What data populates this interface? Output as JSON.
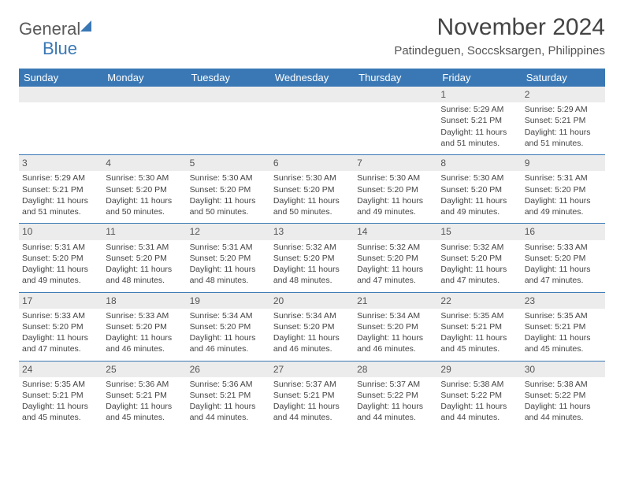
{
  "brand": {
    "part1": "General",
    "part2": "Blue"
  },
  "title": "November 2024",
  "subtitle": "Patindeguen, Soccsksargen, Philippines",
  "colors": {
    "header_bg": "#3a78b5",
    "header_text": "#ffffff",
    "daynum_bg": "#ececec",
    "row_separator": "#3a78b5",
    "body_text": "#444444",
    "logo_gray": "#5a5a5a",
    "logo_blue": "#3a78b5"
  },
  "typography": {
    "title_fontsize": 30,
    "subtitle_fontsize": 15,
    "header_fontsize": 13,
    "cell_fontsize": 10.5
  },
  "dayHeaders": [
    "Sunday",
    "Monday",
    "Tuesday",
    "Wednesday",
    "Thursday",
    "Friday",
    "Saturday"
  ],
  "weeks": [
    [
      {
        "day": "",
        "sunrise": "",
        "sunset": "",
        "daylight": ""
      },
      {
        "day": "",
        "sunrise": "",
        "sunset": "",
        "daylight": ""
      },
      {
        "day": "",
        "sunrise": "",
        "sunset": "",
        "daylight": ""
      },
      {
        "day": "",
        "sunrise": "",
        "sunset": "",
        "daylight": ""
      },
      {
        "day": "",
        "sunrise": "",
        "sunset": "",
        "daylight": ""
      },
      {
        "day": "1",
        "sunrise": "Sunrise: 5:29 AM",
        "sunset": "Sunset: 5:21 PM",
        "daylight": "Daylight: 11 hours and 51 minutes."
      },
      {
        "day": "2",
        "sunrise": "Sunrise: 5:29 AM",
        "sunset": "Sunset: 5:21 PM",
        "daylight": "Daylight: 11 hours and 51 minutes."
      }
    ],
    [
      {
        "day": "3",
        "sunrise": "Sunrise: 5:29 AM",
        "sunset": "Sunset: 5:21 PM",
        "daylight": "Daylight: 11 hours and 51 minutes."
      },
      {
        "day": "4",
        "sunrise": "Sunrise: 5:30 AM",
        "sunset": "Sunset: 5:20 PM",
        "daylight": "Daylight: 11 hours and 50 minutes."
      },
      {
        "day": "5",
        "sunrise": "Sunrise: 5:30 AM",
        "sunset": "Sunset: 5:20 PM",
        "daylight": "Daylight: 11 hours and 50 minutes."
      },
      {
        "day": "6",
        "sunrise": "Sunrise: 5:30 AM",
        "sunset": "Sunset: 5:20 PM",
        "daylight": "Daylight: 11 hours and 50 minutes."
      },
      {
        "day": "7",
        "sunrise": "Sunrise: 5:30 AM",
        "sunset": "Sunset: 5:20 PM",
        "daylight": "Daylight: 11 hours and 49 minutes."
      },
      {
        "day": "8",
        "sunrise": "Sunrise: 5:30 AM",
        "sunset": "Sunset: 5:20 PM",
        "daylight": "Daylight: 11 hours and 49 minutes."
      },
      {
        "day": "9",
        "sunrise": "Sunrise: 5:31 AM",
        "sunset": "Sunset: 5:20 PM",
        "daylight": "Daylight: 11 hours and 49 minutes."
      }
    ],
    [
      {
        "day": "10",
        "sunrise": "Sunrise: 5:31 AM",
        "sunset": "Sunset: 5:20 PM",
        "daylight": "Daylight: 11 hours and 49 minutes."
      },
      {
        "day": "11",
        "sunrise": "Sunrise: 5:31 AM",
        "sunset": "Sunset: 5:20 PM",
        "daylight": "Daylight: 11 hours and 48 minutes."
      },
      {
        "day": "12",
        "sunrise": "Sunrise: 5:31 AM",
        "sunset": "Sunset: 5:20 PM",
        "daylight": "Daylight: 11 hours and 48 minutes."
      },
      {
        "day": "13",
        "sunrise": "Sunrise: 5:32 AM",
        "sunset": "Sunset: 5:20 PM",
        "daylight": "Daylight: 11 hours and 48 minutes."
      },
      {
        "day": "14",
        "sunrise": "Sunrise: 5:32 AM",
        "sunset": "Sunset: 5:20 PM",
        "daylight": "Daylight: 11 hours and 47 minutes."
      },
      {
        "day": "15",
        "sunrise": "Sunrise: 5:32 AM",
        "sunset": "Sunset: 5:20 PM",
        "daylight": "Daylight: 11 hours and 47 minutes."
      },
      {
        "day": "16",
        "sunrise": "Sunrise: 5:33 AM",
        "sunset": "Sunset: 5:20 PM",
        "daylight": "Daylight: 11 hours and 47 minutes."
      }
    ],
    [
      {
        "day": "17",
        "sunrise": "Sunrise: 5:33 AM",
        "sunset": "Sunset: 5:20 PM",
        "daylight": "Daylight: 11 hours and 47 minutes."
      },
      {
        "day": "18",
        "sunrise": "Sunrise: 5:33 AM",
        "sunset": "Sunset: 5:20 PM",
        "daylight": "Daylight: 11 hours and 46 minutes."
      },
      {
        "day": "19",
        "sunrise": "Sunrise: 5:34 AM",
        "sunset": "Sunset: 5:20 PM",
        "daylight": "Daylight: 11 hours and 46 minutes."
      },
      {
        "day": "20",
        "sunrise": "Sunrise: 5:34 AM",
        "sunset": "Sunset: 5:20 PM",
        "daylight": "Daylight: 11 hours and 46 minutes."
      },
      {
        "day": "21",
        "sunrise": "Sunrise: 5:34 AM",
        "sunset": "Sunset: 5:20 PM",
        "daylight": "Daylight: 11 hours and 46 minutes."
      },
      {
        "day": "22",
        "sunrise": "Sunrise: 5:35 AM",
        "sunset": "Sunset: 5:21 PM",
        "daylight": "Daylight: 11 hours and 45 minutes."
      },
      {
        "day": "23",
        "sunrise": "Sunrise: 5:35 AM",
        "sunset": "Sunset: 5:21 PM",
        "daylight": "Daylight: 11 hours and 45 minutes."
      }
    ],
    [
      {
        "day": "24",
        "sunrise": "Sunrise: 5:35 AM",
        "sunset": "Sunset: 5:21 PM",
        "daylight": "Daylight: 11 hours and 45 minutes."
      },
      {
        "day": "25",
        "sunrise": "Sunrise: 5:36 AM",
        "sunset": "Sunset: 5:21 PM",
        "daylight": "Daylight: 11 hours and 45 minutes."
      },
      {
        "day": "26",
        "sunrise": "Sunrise: 5:36 AM",
        "sunset": "Sunset: 5:21 PM",
        "daylight": "Daylight: 11 hours and 44 minutes."
      },
      {
        "day": "27",
        "sunrise": "Sunrise: 5:37 AM",
        "sunset": "Sunset: 5:21 PM",
        "daylight": "Daylight: 11 hours and 44 minutes."
      },
      {
        "day": "28",
        "sunrise": "Sunrise: 5:37 AM",
        "sunset": "Sunset: 5:22 PM",
        "daylight": "Daylight: 11 hours and 44 minutes."
      },
      {
        "day": "29",
        "sunrise": "Sunrise: 5:38 AM",
        "sunset": "Sunset: 5:22 PM",
        "daylight": "Daylight: 11 hours and 44 minutes."
      },
      {
        "day": "30",
        "sunrise": "Sunrise: 5:38 AM",
        "sunset": "Sunset: 5:22 PM",
        "daylight": "Daylight: 11 hours and 44 minutes."
      }
    ]
  ]
}
